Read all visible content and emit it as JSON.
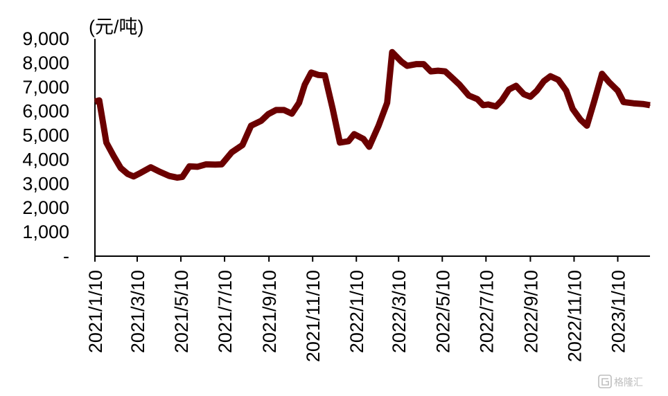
{
  "chart_data": {
    "type": "line",
    "title": "",
    "xlabel": "",
    "ylabel": "(元/吨)",
    "ylim": [
      0,
      9000
    ],
    "grid": false,
    "legend": "none",
    "color": "#6b0000",
    "y_ticks": [
      {
        "value": 0,
        "label": "-"
      },
      {
        "value": 1000,
        "label": "1,000"
      },
      {
        "value": 2000,
        "label": "2,000"
      },
      {
        "value": 3000,
        "label": "3,000"
      },
      {
        "value": 4000,
        "label": "4,000"
      },
      {
        "value": 5000,
        "label": "5,000"
      },
      {
        "value": 6000,
        "label": "6,000"
      },
      {
        "value": 7000,
        "label": "7,000"
      },
      {
        "value": 8000,
        "label": "8,000"
      },
      {
        "value": 9000,
        "label": "9,000"
      }
    ],
    "x_ticks": [
      "2021/1/10",
      "2021/3/10",
      "2021/5/10",
      "2021/7/10",
      "2021/9/10",
      "2021/11/10",
      "2022/1/10",
      "2022/3/10",
      "2022/5/10",
      "2022/7/10",
      "2022/9/10",
      "2022/11/10",
      "2023/1/10"
    ],
    "x_range": [
      "2021/1/10",
      "2023/2/24"
    ],
    "series": [
      {
        "points": [
          [
            "2021/1/10",
            6400
          ],
          [
            "2021/1/16",
            6450
          ],
          [
            "2021/1/26",
            4700
          ],
          [
            "2021/2/5",
            4150
          ],
          [
            "2021/2/15",
            3650
          ],
          [
            "2021/2/25",
            3400
          ],
          [
            "2021/3/5",
            3300
          ],
          [
            "2021/3/15",
            3450
          ],
          [
            "2021/3/29",
            3680
          ],
          [
            "2021/4/10",
            3500
          ],
          [
            "2021/4/24",
            3320
          ],
          [
            "2021/5/5",
            3250
          ],
          [
            "2021/5/12",
            3280
          ],
          [
            "2021/5/22",
            3720
          ],
          [
            "2021/6/2",
            3700
          ],
          [
            "2021/6/14",
            3800
          ],
          [
            "2021/6/27",
            3790
          ],
          [
            "2021/7/6",
            3800
          ],
          [
            "2021/7/20",
            4300
          ],
          [
            "2021/8/4",
            4600
          ],
          [
            "2021/8/16",
            5400
          ],
          [
            "2021/8/30",
            5600
          ],
          [
            "2021/9/9",
            5880
          ],
          [
            "2021/9/20",
            6050
          ],
          [
            "2021/10/1",
            6050
          ],
          [
            "2021/10/12",
            5900
          ],
          [
            "2021/10/22",
            6350
          ],
          [
            "2021/10/30",
            7100
          ],
          [
            "2021/11/8",
            7600
          ],
          [
            "2021/11/18",
            7500
          ],
          [
            "2021/11/27",
            7480
          ],
          [
            "2021/12/8",
            6100
          ],
          [
            "2021/12/18",
            4700
          ],
          [
            "2021/12/30",
            4760
          ],
          [
            "2022/1/7",
            5050
          ],
          [
            "2022/1/20",
            4850
          ],
          [
            "2022/1/28",
            4530
          ],
          [
            "2022/2/10",
            5400
          ],
          [
            "2022/2/22",
            6350
          ],
          [
            "2022/3/1",
            8450
          ],
          [
            "2022/3/14",
            8050
          ],
          [
            "2022/3/22",
            7880
          ],
          [
            "2022/4/4",
            7950
          ],
          [
            "2022/4/14",
            7950
          ],
          [
            "2022/4/24",
            7650
          ],
          [
            "2022/5/4",
            7680
          ],
          [
            "2022/5/14",
            7650
          ],
          [
            "2022/5/25",
            7350
          ],
          [
            "2022/6/3",
            7100
          ],
          [
            "2022/6/16",
            6650
          ],
          [
            "2022/6/28",
            6500
          ],
          [
            "2022/7/6",
            6250
          ],
          [
            "2022/7/13",
            6280
          ],
          [
            "2022/7/24",
            6200
          ],
          [
            "2022/8/1",
            6450
          ],
          [
            "2022/8/11",
            6900
          ],
          [
            "2022/8/21",
            7050
          ],
          [
            "2022/9/1",
            6700
          ],
          [
            "2022/9/10",
            6600
          ],
          [
            "2022/9/19",
            6850
          ],
          [
            "2022/9/29",
            7250
          ],
          [
            "2022/10/8",
            7450
          ],
          [
            "2022/10/19",
            7300
          ],
          [
            "2022/10/30",
            6850
          ],
          [
            "2022/11/8",
            6100
          ],
          [
            "2022/11/19",
            5650
          ],
          [
            "2022/11/28",
            5400
          ],
          [
            "2022/12/8",
            6400
          ],
          [
            "2022/12/19",
            7550
          ],
          [
            "2022/12/29",
            7200
          ],
          [
            "2023/1/10",
            6850
          ],
          [
            "2023/1/18",
            6380
          ],
          [
            "2023/2/1",
            6330
          ],
          [
            "2023/2/14",
            6300
          ],
          [
            "2023/2/24",
            6250
          ]
        ]
      }
    ]
  },
  "watermark": {
    "icon": "g-logo-icon",
    "text": "格隆汇"
  }
}
